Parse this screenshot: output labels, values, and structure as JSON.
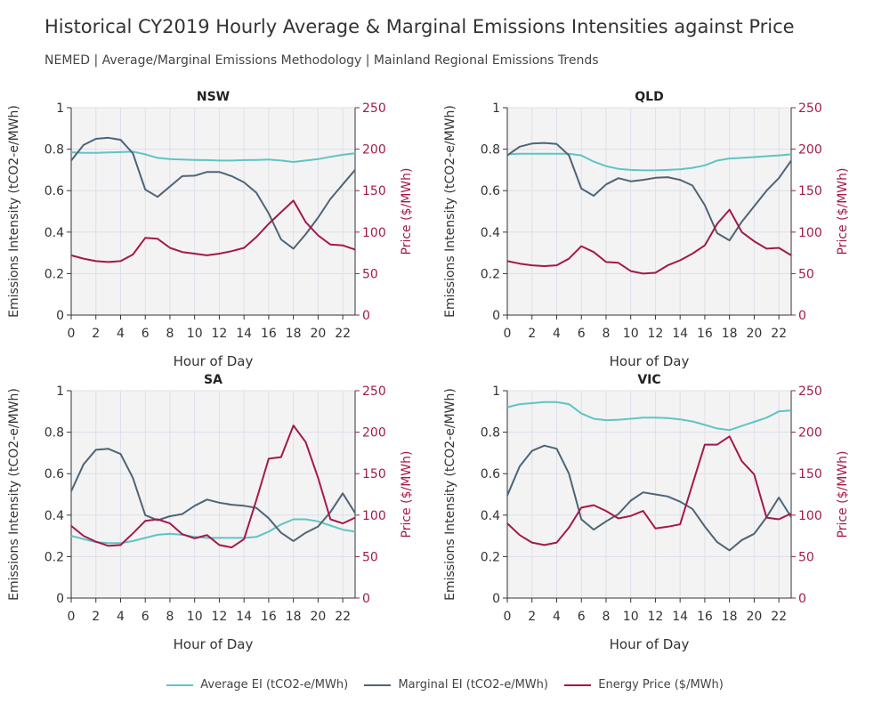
{
  "header": {
    "title": "Historical CY2019 Hourly Average & Marginal Emissions Intensities against Price",
    "subtitle": "NEMED | Average/Marginal Emissions Methodology | Mainland Regional Emissions Trends"
  },
  "colors": {
    "average": "#5fc4c4",
    "marginal": "#4f6475",
    "price": "#a3194a",
    "panel_bg": "#f3f3f3",
    "grid": "#dde0ea"
  },
  "legend": {
    "items": [
      {
        "label": "Average EI (tCO2-e/MWh)"
      },
      {
        "label": "Marginal EI (tCO2-e/MWh)"
      },
      {
        "label": "Energy Price ($/MWh)"
      }
    ]
  },
  "chart_data": {
    "type": "line",
    "xlabel": "Hour of Day",
    "ylabel": "Emissions Intensity (tCO2-e/MWh)",
    "y2label": "Price ($/MWh)",
    "xlim": [
      0,
      23
    ],
    "ylim": [
      0,
      1
    ],
    "y2lim": [
      0,
      250
    ],
    "x_ticks": [
      0,
      2,
      4,
      6,
      8,
      10,
      12,
      14,
      16,
      18,
      20,
      22
    ],
    "y_ticks": [
      0,
      0.2,
      0.4,
      0.6,
      0.8,
      1
    ],
    "y_tick_labels": [
      "0",
      "0.2",
      "0.4",
      "0.6",
      "0.8",
      "1"
    ],
    "y2_ticks": [
      0,
      50,
      100,
      150,
      200,
      250
    ],
    "grid": true,
    "legend_position": "bottom-center",
    "x": [
      0,
      1,
      2,
      3,
      4,
      5,
      6,
      7,
      8,
      9,
      10,
      11,
      12,
      13,
      14,
      15,
      16,
      17,
      18,
      19,
      20,
      21,
      22,
      23
    ],
    "panels": [
      {
        "title": "NSW",
        "average": [
          0.785,
          0.782,
          0.782,
          0.784,
          0.786,
          0.788,
          0.775,
          0.758,
          0.752,
          0.75,
          0.748,
          0.747,
          0.745,
          0.745,
          0.747,
          0.748,
          0.75,
          0.745,
          0.738,
          0.745,
          0.752,
          0.763,
          0.773,
          0.78
        ],
        "marginal": [
          0.745,
          0.82,
          0.85,
          0.855,
          0.845,
          0.78,
          0.605,
          0.57,
          0.62,
          0.67,
          0.672,
          0.69,
          0.69,
          0.67,
          0.64,
          0.59,
          0.49,
          0.365,
          0.32,
          0.39,
          0.47,
          0.56,
          0.63,
          0.7
        ],
        "price": [
          72,
          68,
          65,
          64,
          65,
          73,
          93,
          92,
          81,
          76,
          74,
          72,
          74,
          77,
          81,
          94,
          110,
          124,
          138,
          112,
          96,
          85,
          84,
          79
        ]
      },
      {
        "title": "QLD",
        "average": [
          0.775,
          0.778,
          0.778,
          0.778,
          0.778,
          0.778,
          0.77,
          0.74,
          0.718,
          0.705,
          0.7,
          0.698,
          0.698,
          0.7,
          0.703,
          0.71,
          0.722,
          0.745,
          0.755,
          0.758,
          0.762,
          0.766,
          0.77,
          0.775
        ],
        "marginal": [
          0.77,
          0.812,
          0.827,
          0.83,
          0.825,
          0.77,
          0.61,
          0.575,
          0.63,
          0.66,
          0.645,
          0.652,
          0.662,
          0.665,
          0.652,
          0.625,
          0.53,
          0.395,
          0.36,
          0.45,
          0.525,
          0.6,
          0.66,
          0.745
        ],
        "price": [
          65,
          62,
          60,
          59,
          60,
          68,
          83,
          76,
          64,
          63,
          53,
          50,
          51,
          60,
          66,
          74,
          84,
          110,
          127,
          100,
          89,
          80,
          81,
          72
        ]
      },
      {
        "title": "SA",
        "average": [
          0.3,
          0.285,
          0.27,
          0.265,
          0.265,
          0.275,
          0.29,
          0.305,
          0.31,
          0.305,
          0.295,
          0.29,
          0.29,
          0.29,
          0.29,
          0.295,
          0.32,
          0.355,
          0.38,
          0.38,
          0.37,
          0.35,
          0.33,
          0.32
        ],
        "marginal": [
          0.515,
          0.645,
          0.715,
          0.72,
          0.695,
          0.58,
          0.4,
          0.375,
          0.395,
          0.405,
          0.445,
          0.475,
          0.46,
          0.45,
          0.445,
          0.435,
          0.385,
          0.315,
          0.275,
          0.315,
          0.345,
          0.415,
          0.505,
          0.41
        ],
        "price": [
          87,
          75,
          68,
          63,
          64,
          78,
          93,
          95,
          90,
          77,
          72,
          76,
          64,
          61,
          71,
          118,
          168,
          170,
          208,
          188,
          145,
          95,
          90,
          97
        ]
      },
      {
        "title": "VIC",
        "average": [
          0.92,
          0.935,
          0.94,
          0.945,
          0.945,
          0.935,
          0.89,
          0.865,
          0.858,
          0.86,
          0.865,
          0.87,
          0.87,
          0.868,
          0.862,
          0.852,
          0.835,
          0.818,
          0.81,
          0.83,
          0.85,
          0.87,
          0.9,
          0.905
        ],
        "marginal": [
          0.495,
          0.635,
          0.71,
          0.735,
          0.72,
          0.6,
          0.38,
          0.33,
          0.37,
          0.405,
          0.47,
          0.51,
          0.5,
          0.49,
          0.465,
          0.43,
          0.345,
          0.27,
          0.23,
          0.28,
          0.31,
          0.39,
          0.485,
          0.39
        ],
        "price": [
          90,
          76,
          67,
          64,
          67,
          85,
          109,
          112,
          105,
          96,
          99,
          105,
          84,
          86,
          89,
          137,
          185,
          185,
          195,
          165,
          149,
          97,
          95,
          102
        ]
      }
    ]
  }
}
